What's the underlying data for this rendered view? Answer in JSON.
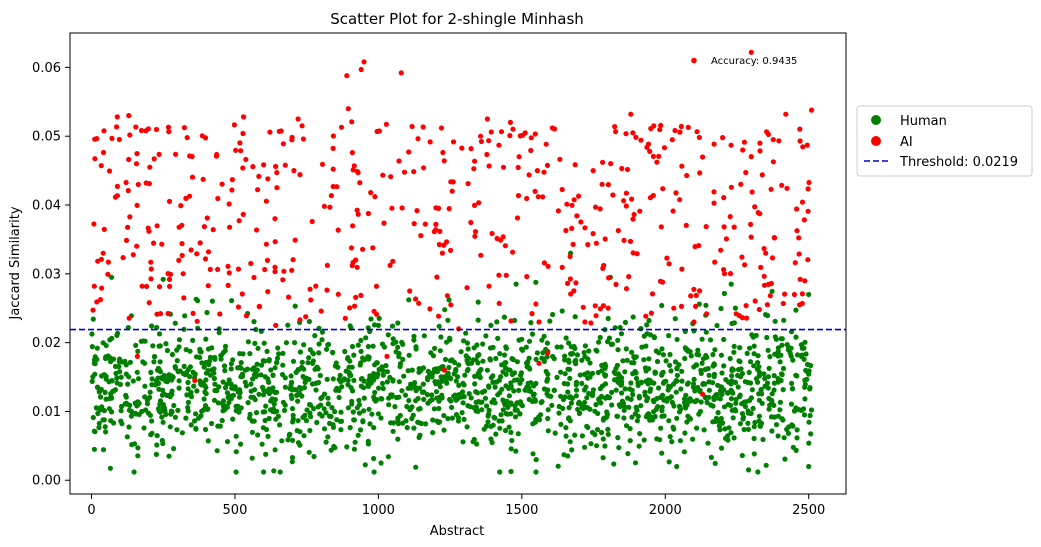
{
  "chart_data": {
    "type": "scatter",
    "title": "Scatter Plot for 2-shingle Minhash",
    "xlabel": "Abstract",
    "ylabel": "Jaccard Similarity",
    "xlim": [
      -75,
      2630
    ],
    "ylim": [
      -0.002,
      0.065
    ],
    "xticks": [
      0,
      500,
      1000,
      1500,
      2000,
      2500
    ],
    "yticks": [
      0.0,
      0.01,
      0.02,
      0.03,
      0.04,
      0.05,
      0.06
    ],
    "ytick_labels": [
      "0.00",
      "0.01",
      "0.02",
      "0.03",
      "0.04",
      "0.05",
      "0.06"
    ],
    "grid": false,
    "legend_placement": "outside-right",
    "threshold": {
      "value": 0.0219,
      "label": "Threshold: 0.0219",
      "color": "#0000cc"
    },
    "annotation": {
      "text": "Accuracy: 0.9435",
      "marker_x": 2100,
      "marker_y": 0.061,
      "color": "#ff0000"
    },
    "series": [
      {
        "name": "Human",
        "color": "#008000",
        "generator": {
          "count": 1850,
          "x_range": [
            0,
            2510
          ],
          "y_mean": 0.0135,
          "y_sd": 0.0048,
          "y_min": 0.0012,
          "y_max": 0.0295,
          "seed": 12345
        },
        "points": [
          [
            600,
            0.0012
          ],
          [
            2500,
            0.002
          ],
          [
            1130,
            0.0019
          ],
          [
            2290,
            0.0015
          ],
          [
            10,
            0.0045
          ],
          [
            700,
            0.0027
          ],
          [
            2040,
            0.002
          ],
          [
            270,
            0.0035
          ],
          [
            560,
            0.0032
          ],
          [
            1550,
            0.003
          ],
          [
            70,
            0.0295
          ],
          [
            250,
            0.0292
          ],
          [
            1670,
            0.033
          ],
          [
            1480,
            0.0285
          ],
          [
            2230,
            0.0285
          ],
          [
            2500,
            0.027
          ],
          [
            1000,
            0.0225
          ]
        ]
      },
      {
        "name": "AI",
        "color": "#ff0000",
        "generator": {
          "count": 520,
          "x_range": [
            0,
            2510
          ],
          "y_min": 0.0222,
          "y_max": 0.0535,
          "seed": 67890
        },
        "points": [
          [
            2300,
            0.0622
          ],
          [
            950,
            0.0608
          ],
          [
            890,
            0.0588
          ],
          [
            940,
            0.0597
          ],
          [
            1080,
            0.0592
          ],
          [
            895,
            0.054
          ],
          [
            2510,
            0.0538
          ],
          [
            1880,
            0.0532
          ],
          [
            2420,
            0.0532
          ],
          [
            1460,
            0.052
          ],
          [
            1960,
            0.0515
          ],
          [
            2470,
            0.0493
          ],
          [
            2330,
            0.049
          ],
          [
            2270,
            0.048
          ],
          [
            2200,
            0.0498
          ],
          [
            130,
            0.053
          ],
          [
            530,
            0.0528
          ],
          [
            720,
            0.0525
          ],
          [
            1380,
            0.0525
          ],
          [
            90,
            0.0528
          ],
          [
            1030,
            0.018
          ],
          [
            2130,
            0.0125
          ],
          [
            1720,
            0.023
          ],
          [
            160,
            0.018
          ],
          [
            1590,
            0.0185
          ],
          [
            360,
            0.0145
          ],
          [
            1230,
            0.016
          ],
          [
            1560,
            0.017
          ],
          [
            2450,
            0.027
          ],
          [
            2100,
            0.023
          ],
          [
            1280,
            0.022
          ],
          [
            1560,
            0.023
          ]
        ]
      }
    ]
  }
}
